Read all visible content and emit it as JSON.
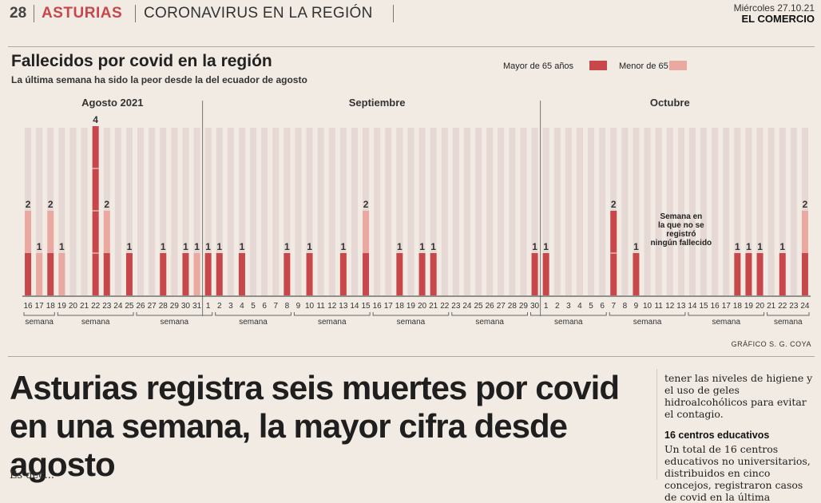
{
  "header": {
    "page_number": "28",
    "section": "ASTURIAS",
    "topic": "CORONAVIRUS EN LA REGIÓN",
    "date": "Miércoles 27.10.21",
    "newspaper": "EL COMERCIO"
  },
  "chart_data": {
    "type": "bar",
    "title": "Fallecidos por covid en la región",
    "subtitle": "La última semana ha sido la peor desde la del ecuador de agosto",
    "legend": [
      "Mayor de 65 años",
      "Menor de 65"
    ],
    "legend_placement": "top-right",
    "colors": {
      "mayor": "#c8474b",
      "menor": "#e9a8a0",
      "track": "#e6d8d4"
    },
    "months": [
      "Agosto 2021",
      "Septiembre",
      "Octubre"
    ],
    "x": [
      "16",
      "17",
      "18",
      "19",
      "20",
      "21",
      "22",
      "23",
      "24",
      "25",
      "26",
      "27",
      "28",
      "29",
      "30",
      "31",
      "1",
      "2",
      "3",
      "4",
      "5",
      "6",
      "7",
      "8",
      "9",
      "10",
      "11",
      "12",
      "13",
      "14",
      "15",
      "16",
      "17",
      "18",
      "19",
      "20",
      "21",
      "22",
      "23",
      "24",
      "25",
      "26",
      "27",
      "28",
      "29",
      "30",
      "1",
      "2",
      "3",
      "4",
      "5",
      "6",
      "7",
      "8",
      "9",
      "10",
      "11",
      "12",
      "13",
      "14",
      "15",
      "16",
      "17",
      "18",
      "19",
      "20",
      "21",
      "22",
      "23",
      "24"
    ],
    "series": [
      {
        "name": "Mayor de 65 años",
        "values": [
          1,
          0,
          1,
          0,
          0,
          0,
          4,
          1,
          0,
          1,
          0,
          0,
          1,
          0,
          1,
          0,
          1,
          1,
          0,
          1,
          0,
          0,
          0,
          1,
          0,
          1,
          0,
          0,
          1,
          0,
          1,
          0,
          0,
          1,
          0,
          1,
          1,
          0,
          0,
          0,
          0,
          0,
          0,
          0,
          0,
          1,
          1,
          0,
          0,
          0,
          0,
          0,
          2,
          0,
          1,
          0,
          0,
          0,
          0,
          0,
          0,
          0,
          0,
          1,
          1,
          1,
          0,
          1,
          0,
          1
        ]
      },
      {
        "name": "Menor de 65",
        "values": [
          1,
          1,
          1,
          1,
          0,
          0,
          0,
          1,
          0,
          0,
          0,
          0,
          0,
          0,
          0,
          1,
          0,
          0,
          0,
          0,
          0,
          0,
          0,
          0,
          0,
          0,
          0,
          0,
          0,
          0,
          1,
          0,
          0,
          0,
          0,
          0,
          0,
          0,
          0,
          0,
          0,
          0,
          0,
          0,
          0,
          0,
          0,
          0,
          0,
          0,
          0,
          0,
          0,
          0,
          0,
          0,
          0,
          0,
          0,
          0,
          0,
          0,
          0,
          0,
          0,
          0,
          0,
          0,
          0,
          1
        ]
      }
    ],
    "totals": [
      "2",
      "1",
      "2",
      "1",
      "",
      "",
      "4",
      "2",
      "",
      "1",
      "",
      "",
      "1",
      "",
      "1",
      "1",
      "1",
      "1",
      "",
      "1",
      "",
      "",
      "",
      "1",
      "",
      "1",
      "",
      "",
      "1",
      "",
      "2",
      "",
      "",
      "1",
      "",
      "1",
      "1",
      "",
      "",
      "",
      "",
      "",
      "",
      "",
      "",
      "1",
      "1",
      "",
      "",
      "",
      "",
      "",
      "2",
      "",
      "1",
      "",
      "",
      "",
      "",
      "",
      "",
      "",
      "",
      "1",
      "1",
      "1",
      "",
      "1",
      "",
      "2"
    ],
    "ylim": [
      0,
      4
    ],
    "week_label": "semana",
    "annotation": "Semana en la que no se registró ningún fallecido",
    "credit": "GRÁFICO S. G. COYA"
  },
  "article": {
    "headline": "Asturias registra seis muertes por covid en una semana, la mayor cifra desde agosto",
    "col_text1": "tener las niveles de higiene y el uso de geles hidroalcohólicos para evitar el contagio.",
    "col_heading": "16 centros educativos",
    "col_text2": "Un total de 16 centros educativos no universitarios, distribuidos en cinco concejos, registraron casos de covid en la última",
    "cutoff_text": "Es dec..."
  }
}
